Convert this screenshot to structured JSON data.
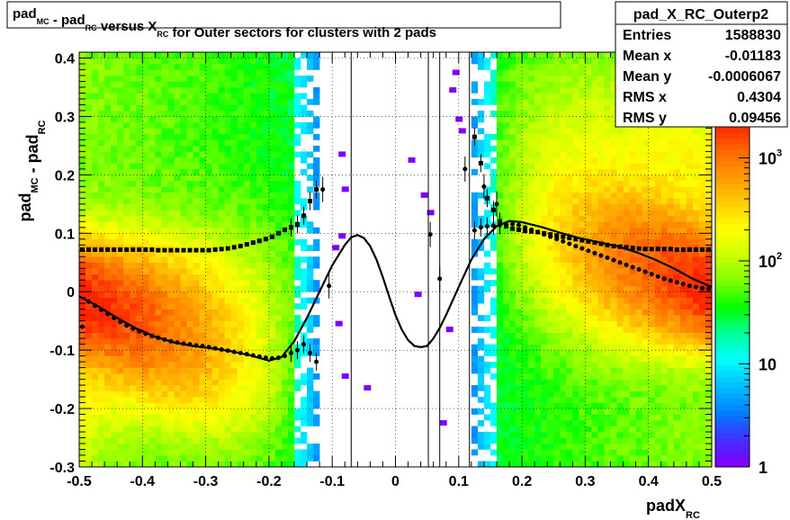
{
  "chart_data": {
    "type": "heatmap",
    "title": {
      "segments": [
        {
          "text": "pad",
          "sub": "MC"
        },
        {
          "text": " - pad",
          "sub": "RC"
        },
        {
          "text": " versus X",
          "sub": "RC"
        },
        {
          "text": " for Outer sectors for clusters with 2 pads",
          "sub": ""
        }
      ]
    },
    "xlabel": {
      "main": "padX",
      "sub": "RC"
    },
    "ylabel": {
      "main": "pad",
      "sub": "MC",
      "main2": " - pad",
      "sub2": "RC"
    },
    "xlim": [
      -0.5,
      0.5
    ],
    "ylim": [
      -0.3,
      0.41
    ],
    "x_ticks": [
      {
        "v": -0.5,
        "label": "-0.5"
      },
      {
        "v": -0.4,
        "label": "-0.4"
      },
      {
        "v": -0.3,
        "label": "-0.3"
      },
      {
        "v": -0.2,
        "label": "-0.2"
      },
      {
        "v": -0.1,
        "label": "-0.1"
      },
      {
        "v": 0.0,
        "label": "0"
      },
      {
        "v": 0.1,
        "label": "0.1"
      },
      {
        "v": 0.2,
        "label": "0.2"
      },
      {
        "v": 0.3,
        "label": "0.3"
      },
      {
        "v": 0.4,
        "label": "0.4"
      },
      {
        "v": 0.5,
        "label": "0.5"
      }
    ],
    "y_ticks": [
      {
        "v": -0.3,
        "label": "-0.3"
      },
      {
        "v": -0.2,
        "label": "-0.2"
      },
      {
        "v": -0.1,
        "label": "-0.1"
      },
      {
        "v": 0.0,
        "label": "0"
      },
      {
        "v": 0.1,
        "label": "0.1"
      },
      {
        "v": 0.2,
        "label": "0.2"
      },
      {
        "v": 0.3,
        "label": "0.3"
      },
      {
        "v": 0.4,
        "label": "0.4"
      }
    ],
    "grid": true,
    "z_scale": "log",
    "z_range": [
      1,
      2000
    ],
    "z_ticks": [
      {
        "v": 1,
        "label": "1",
        "sup": ""
      },
      {
        "v": 10,
        "label": "10",
        "sup": ""
      },
      {
        "v": 100,
        "label": "10",
        "sup": "2"
      },
      {
        "v": 1000,
        "label": "10",
        "sup": "3"
      }
    ],
    "palette": [
      "#7f00ff",
      "#3d33ff",
      "#0080ff",
      "#00c0ff",
      "#00ffff",
      "#00ff99",
      "#00ff00",
      "#80ff00",
      "#ccff00",
      "#ffff00",
      "#ffcc00",
      "#ff9900",
      "#ff6600",
      "#ff2200"
    ],
    "stats_box": {
      "name": "pad_X_RC_Outerp2",
      "rows": [
        {
          "label": "Entries",
          "value": "1588830"
        },
        {
          "label": "Mean x",
          "value": "-0.01183"
        },
        {
          "label": "Mean y",
          "value": "-0.0006067"
        },
        {
          "label": "RMS x",
          "value": "0.4304"
        },
        {
          "label": "RMS y",
          "value": "0.09456"
        }
      ]
    },
    "vertical_lines": [
      -0.07,
      0.052,
      0.07,
      0.117
    ],
    "series": [
      {
        "kind": "profile_upper",
        "x": [
          -0.495,
          -0.485,
          -0.475,
          -0.465,
          -0.455,
          -0.445,
          -0.435,
          -0.425,
          -0.415,
          -0.405,
          -0.395,
          -0.385,
          -0.375,
          -0.365,
          -0.355,
          -0.345,
          -0.335,
          -0.325,
          -0.315,
          -0.305,
          -0.295,
          -0.285,
          -0.275,
          -0.265,
          -0.255,
          -0.245,
          -0.235,
          -0.225,
          -0.215,
          -0.205,
          -0.195,
          -0.185,
          -0.175,
          -0.165,
          -0.155,
          -0.145,
          -0.135,
          -0.125,
          0.125,
          0.135,
          0.145,
          0.155,
          0.165,
          0.175,
          0.185,
          0.195,
          0.205,
          0.215,
          0.225,
          0.235,
          0.245,
          0.255,
          0.265,
          0.275,
          0.285,
          0.295,
          0.305,
          0.315,
          0.325,
          0.335,
          0.345,
          0.355,
          0.365,
          0.375,
          0.385,
          0.395,
          0.405,
          0.415,
          0.425,
          0.435,
          0.445,
          0.455,
          0.465,
          0.475,
          0.485,
          0.495
        ],
        "y": [
          0.072,
          0.072,
          0.072,
          0.072,
          0.072,
          0.072,
          0.072,
          0.072,
          0.072,
          0.072,
          0.072,
          0.072,
          0.071,
          0.071,
          0.071,
          0.071,
          0.071,
          0.071,
          0.071,
          0.071,
          0.071,
          0.072,
          0.073,
          0.074,
          0.076,
          0.078,
          0.081,
          0.084,
          0.087,
          0.09,
          0.094,
          0.1,
          0.106,
          0.11,
          0.115,
          0.13,
          0.155,
          0.175,
          0.265,
          0.22,
          0.16,
          0.14,
          0.12,
          0.112,
          0.108,
          0.106,
          0.104,
          0.103,
          0.102,
          0.1,
          0.098,
          0.096,
          0.094,
          0.092,
          0.09,
          0.088,
          0.086,
          0.084,
          0.082,
          0.08,
          0.078,
          0.077,
          0.076,
          0.075,
          0.074,
          0.073,
          0.073,
          0.073,
          0.073,
          0.073,
          0.072,
          0.072,
          0.072,
          0.072,
          0.072,
          0.072
        ]
      },
      {
        "kind": "profile_lower",
        "x": [
          -0.495,
          -0.485,
          -0.475,
          -0.465,
          -0.455,
          -0.445,
          -0.435,
          -0.425,
          -0.415,
          -0.405,
          -0.395,
          -0.385,
          -0.375,
          -0.365,
          -0.355,
          -0.345,
          -0.335,
          -0.325,
          -0.315,
          -0.305,
          -0.295,
          -0.285,
          -0.275,
          -0.265,
          -0.255,
          -0.245,
          -0.235,
          -0.225,
          -0.215,
          -0.205,
          -0.195,
          -0.185,
          -0.175,
          -0.165,
          -0.155,
          -0.145,
          -0.135,
          -0.125,
          0.125,
          0.135,
          0.145,
          0.155,
          0.165,
          0.175,
          0.185,
          0.195,
          0.205,
          0.215,
          0.225,
          0.235,
          0.245,
          0.255,
          0.265,
          0.275,
          0.285,
          0.295,
          0.305,
          0.315,
          0.325,
          0.335,
          0.345,
          0.355,
          0.365,
          0.375,
          0.385,
          0.395,
          0.405,
          0.415,
          0.425,
          0.435,
          0.445,
          0.455,
          0.465,
          0.475,
          0.485,
          0.495
        ],
        "y": [
          -0.06,
          -0.017,
          -0.024,
          -0.031,
          -0.038,
          -0.045,
          -0.052,
          -0.058,
          -0.063,
          -0.068,
          -0.072,
          -0.076,
          -0.079,
          -0.082,
          -0.085,
          -0.087,
          -0.089,
          -0.09,
          -0.092,
          -0.093,
          -0.095,
          -0.097,
          -0.099,
          -0.101,
          -0.103,
          -0.105,
          -0.107,
          -0.109,
          -0.111,
          -0.113,
          -0.114,
          -0.113,
          -0.11,
          -0.105,
          -0.1,
          -0.09,
          -0.105,
          -0.12,
          0.105,
          0.11,
          0.112,
          0.113,
          0.114,
          0.115,
          0.116,
          0.114,
          0.11,
          0.106,
          0.102,
          0.098,
          0.094,
          0.09,
          0.086,
          0.082,
          0.078,
          0.074,
          0.07,
          0.066,
          0.062,
          0.058,
          0.054,
          0.05,
          0.046,
          0.042,
          0.038,
          0.034,
          0.03,
          0.026,
          0.022,
          0.019,
          0.016,
          0.013,
          0.01,
          0.008,
          0.006,
          0.005
        ]
      },
      {
        "kind": "center_points",
        "x": [
          -0.105,
          -0.115,
          0.055,
          0.07,
          0.11,
          0.14,
          0.16
        ],
        "y": [
          0.01,
          0.175,
          0.098,
          0.022,
          0.21,
          0.18,
          0.15
        ]
      }
    ],
    "fit_curve": {
      "x": [
        -0.5,
        -0.47,
        -0.44,
        -0.41,
        -0.38,
        -0.35,
        -0.32,
        -0.29,
        -0.26,
        -0.23,
        -0.2,
        -0.18,
        -0.16,
        -0.14,
        -0.12,
        -0.1,
        -0.08,
        -0.07,
        -0.06,
        -0.05,
        -0.04,
        -0.03,
        -0.02,
        -0.01,
        0.0,
        0.01,
        0.02,
        0.03,
        0.04,
        0.05,
        0.06,
        0.07,
        0.08,
        0.1,
        0.12,
        0.14,
        0.16,
        0.18,
        0.2,
        0.23,
        0.26,
        0.29,
        0.32,
        0.35,
        0.38,
        0.41,
        0.44,
        0.47,
        0.5
      ],
      "y": [
        -0.008,
        -0.025,
        -0.045,
        -0.063,
        -0.077,
        -0.087,
        -0.093,
        -0.097,
        -0.102,
        -0.109,
        -0.118,
        -0.112,
        -0.085,
        -0.045,
        0.0,
        0.045,
        0.08,
        0.093,
        0.097,
        0.092,
        0.078,
        0.055,
        0.025,
        -0.008,
        -0.04,
        -0.065,
        -0.083,
        -0.093,
        -0.095,
        -0.093,
        -0.08,
        -0.062,
        -0.04,
        0.008,
        0.055,
        0.09,
        0.112,
        0.121,
        0.119,
        0.111,
        0.101,
        0.092,
        0.085,
        0.078,
        0.068,
        0.055,
        0.04,
        0.022,
        0.008
      ]
    }
  }
}
